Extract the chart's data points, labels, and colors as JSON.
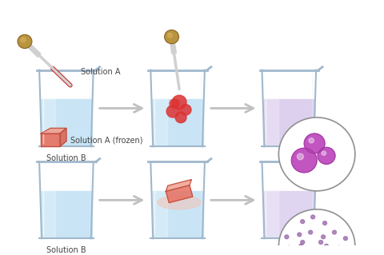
{
  "bg_color": "#ffffff",
  "liquid_blue": "#c8e4f5",
  "liquid_blue_light": "#ddeefa",
  "liquid_purple": "#ddd0ee",
  "liquid_purple_light": "#e8e0f5",
  "beaker_glass": "#c8d8e8",
  "beaker_glass_dark": "#a0b8cc",
  "beaker_glass_light": "#e8f0f8",
  "arrow_color": "#c0c0c0",
  "dropper_bulb": "#b8943f",
  "dropper_body": "#d0d0d0",
  "dropper_liquid": "#cc2222",
  "frozen_main": "#e87060",
  "frozen_light": "#f0a090",
  "frozen_dark": "#c05040",
  "cluster_color": "#bb44bb",
  "cluster_dark": "#993399",
  "dot_color": "#9966aa",
  "circle_edge": "#909090",
  "label_solution_a": "Solution A",
  "label_solution_b": "Solution B",
  "label_frozen": "Solution A (frozen)",
  "font_size": 7.0,
  "text_color": "#444444"
}
